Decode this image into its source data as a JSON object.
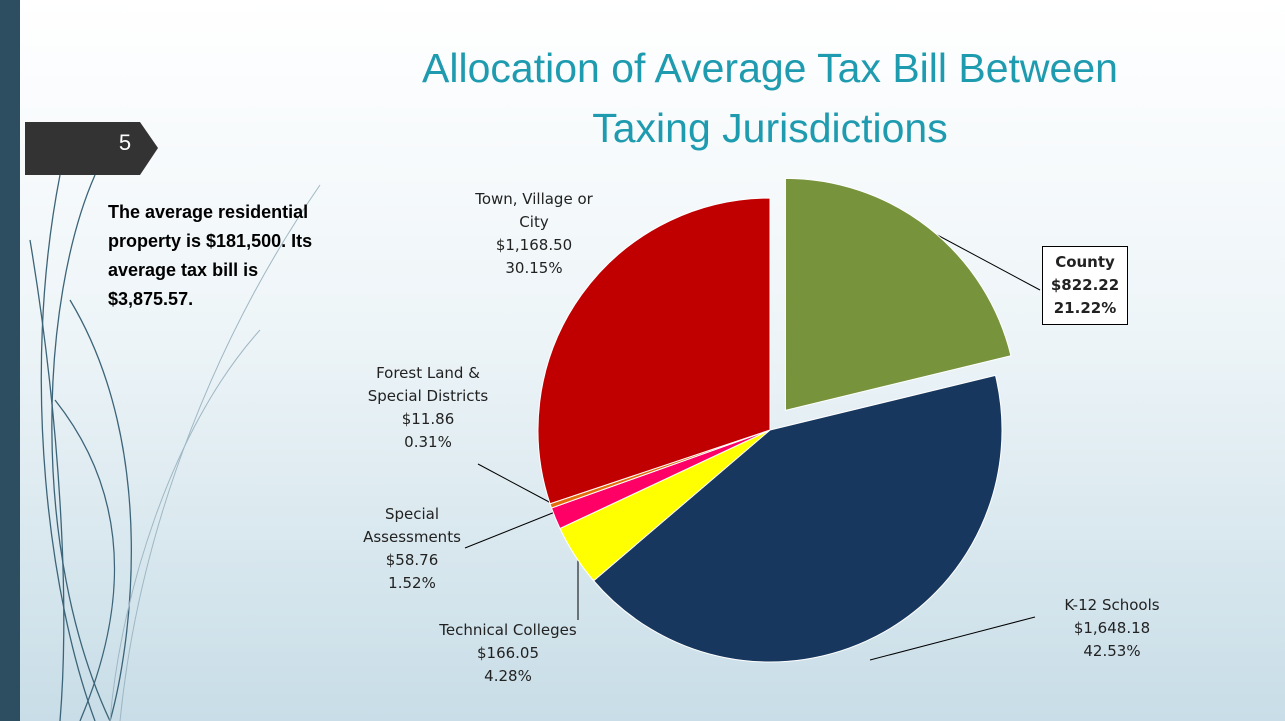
{
  "slide_number": 5,
  "chart_data": {
    "type": "pie",
    "title": "Allocation of Average Tax Bill Between Taxing Jurisdictions",
    "annotation": "The average residential property is $181,500. Its average tax bill is $3,875.57.",
    "categories": [
      "County",
      "K-12 Schools",
      "Technical Colleges",
      "Special Assessments",
      "Forest Land & Special Districts",
      "Town, Village or City"
    ],
    "values": [
      21.22,
      42.53,
      4.28,
      1.52,
      0.31,
      30.15
    ],
    "value_labels": [
      "21.22%",
      "42.53%",
      "4.28%",
      "1.52%",
      "0.31%",
      "30.15%"
    ],
    "amounts": [
      822.22,
      1648.18,
      166.05,
      58.76,
      11.86,
      1168.5
    ],
    "amount_labels": [
      "$822.22",
      "$1,648.18",
      "$166.05",
      "$58.76",
      "$11.86",
      "$1,168.50"
    ],
    "colors": [
      "#77933c",
      "#17375e",
      "#ffff00",
      "#ff0066",
      "#e46c0a",
      "#c00000"
    ],
    "exploded": [
      true,
      false,
      false,
      false,
      false,
      false
    ]
  }
}
